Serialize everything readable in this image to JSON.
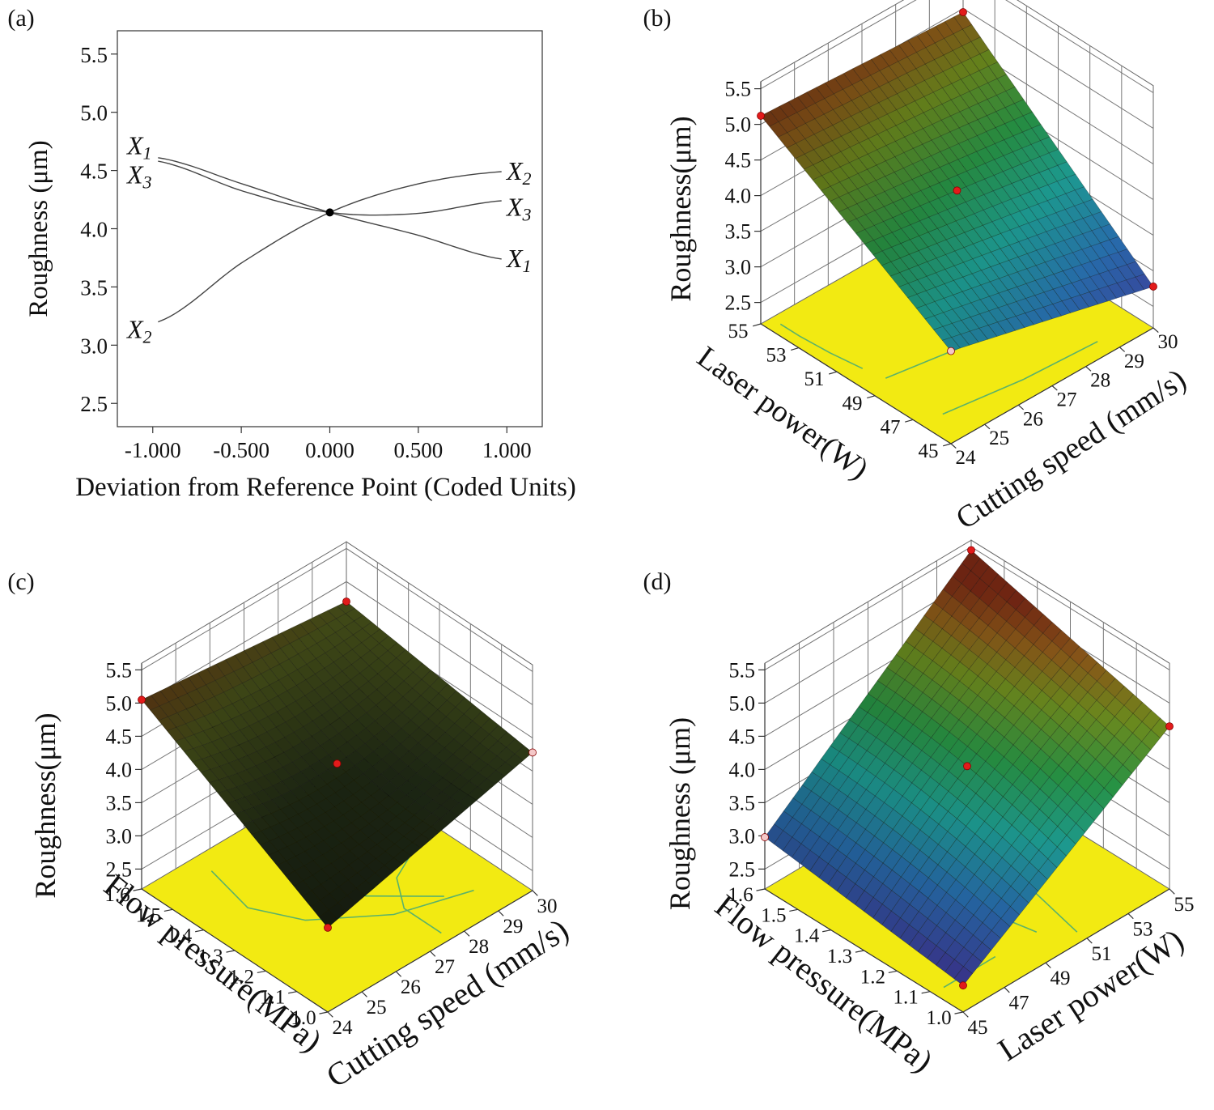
{
  "colors": {
    "floor": "#f2ea12",
    "contour": "#5bb26a",
    "contour_red": "#e0442a",
    "design_point": "#e21b1b"
  },
  "chart_data": [
    {
      "panel": "(a)",
      "type": "line",
      "xlabel": "Deviation from Reference Point (Coded Units)",
      "ylabel": "Roughness (μm)",
      "xlim": [
        -1.2,
        1.2
      ],
      "ylim": [
        2.3,
        5.7
      ],
      "xticks": [
        "-1.000",
        "-0.500",
        "0.000",
        "0.500",
        "1.000"
      ],
      "xtick_values": [
        -1.0,
        -0.5,
        0.0,
        0.5,
        1.0
      ],
      "yticks": [
        "2.5",
        "3.0",
        "3.5",
        "4.0",
        "4.5",
        "5.0",
        "5.5"
      ],
      "ytick_values": [
        2.5,
        3.0,
        3.5,
        4.0,
        4.5,
        5.0,
        5.5
      ],
      "reference_point": {
        "x": 0.0,
        "y": 4.14
      },
      "series": [
        {
          "name": "X1",
          "x": [
            -1.0,
            -0.5,
            0.0,
            0.5,
            1.0
          ],
          "y": [
            4.61,
            4.38,
            4.14,
            3.95,
            3.74
          ]
        },
        {
          "name": "X2",
          "x": [
            -1.0,
            -0.5,
            0.0,
            0.5,
            1.0
          ],
          "y": [
            3.2,
            3.72,
            4.14,
            4.38,
            4.49
          ]
        },
        {
          "name": "X3",
          "x": [
            -1.0,
            -0.5,
            0.0,
            0.5,
            1.0
          ],
          "y": [
            4.58,
            4.32,
            4.14,
            4.13,
            4.24
          ]
        }
      ],
      "labels_left": [
        {
          "name": "X1",
          "sub": "1",
          "y": 4.71
        },
        {
          "name": "X3",
          "sub": "3",
          "y": 4.46
        },
        {
          "name": "X2",
          "sub": "2",
          "y": 3.13
        }
      ],
      "labels_right": [
        {
          "name": "X2",
          "sub": "2",
          "y": 4.49
        },
        {
          "name": "X3",
          "sub": "3",
          "y": 4.18
        },
        {
          "name": "X1",
          "sub": "1",
          "y": 3.74
        }
      ]
    },
    {
      "panel": "(b)",
      "type": "surface",
      "zlabel": "Roughness(μm)",
      "xlabel": "Laser power(W)",
      "ylabel": "Cutting speed (mm/s)",
      "xticks": [
        "55",
        "53",
        "51",
        "49",
        "47",
        "45"
      ],
      "yticks": [
        "24",
        "25",
        "26",
        "27",
        "28",
        "29",
        "30"
      ],
      "zticks": [
        "2.5",
        "3.0",
        "3.5",
        "4.0",
        "4.5",
        "5.0",
        "5.5"
      ],
      "zlim": [
        2.2,
        5.6
      ],
      "corner_values": {
        "left": 5.12,
        "back": 4.95,
        "right": 2.78,
        "front": 3.5
      },
      "center_value": 4.1,
      "colormap": "rgb"
    },
    {
      "panel": "(c)",
      "type": "surface",
      "zlabel": "Roughness(μm)",
      "xlabel": "Flow pressure(MPa)",
      "ylabel": "Cutting speed (mm/s)",
      "xticks": [
        "1.6",
        "1.5",
        "1.4",
        "1.3",
        "1.2",
        "1.1",
        "1.0"
      ],
      "yticks": [
        "24",
        "25",
        "26",
        "27",
        "28",
        "29",
        "30"
      ],
      "zticks": [
        "2.5",
        "3.0",
        "3.5",
        "4.0",
        "4.5",
        "5.0",
        "5.5"
      ],
      "zlim": [
        2.2,
        5.6
      ],
      "corner_values": {
        "left": 5.05,
        "back": 4.7,
        "right": 4.28,
        "front": 3.47
      },
      "center_value": 4.1,
      "colormap": "dark"
    },
    {
      "panel": "(d)",
      "type": "surface",
      "zlabel": "Roughness (μm)",
      "xlabel": "Flow pressure(MPa)",
      "ylabel": "Laser power(W)",
      "xticks": [
        "1.6",
        "1.5",
        "1.4",
        "1.3",
        "1.2",
        "1.1",
        "1.0"
      ],
      "yticks": [
        "45",
        "47",
        "49",
        "51",
        "53",
        "55"
      ],
      "zticks": [
        "2.5",
        "3.0",
        "3.5",
        "4.0",
        "4.5",
        "5.0",
        "5.5"
      ],
      "zlim": [
        2.2,
        5.6
      ],
      "corner_values": {
        "left": 2.98,
        "back": 5.45,
        "right": 4.65,
        "front": 2.6
      },
      "center_value": 4.05,
      "colormap": "rgb"
    }
  ]
}
